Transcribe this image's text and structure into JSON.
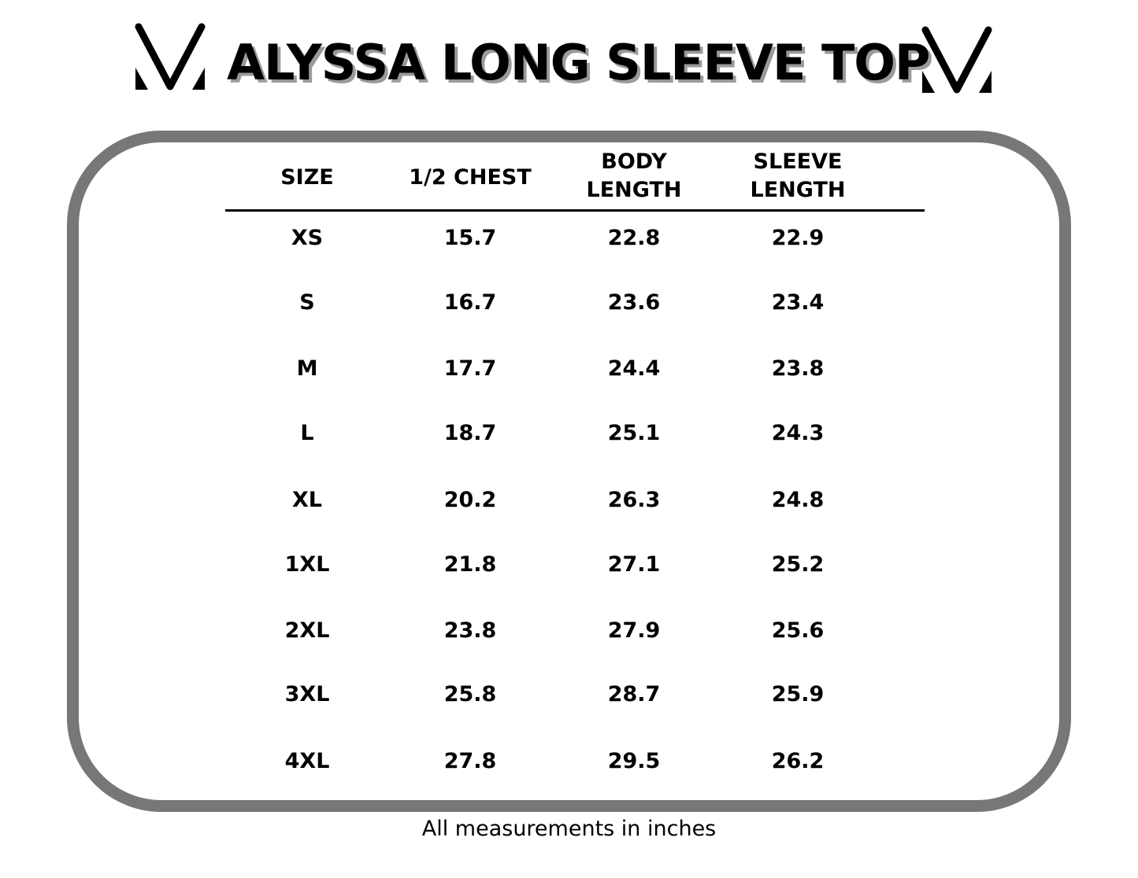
{
  "title": "ALYSSA LONG SLEEVE TOP",
  "logo_icon": "v-logo-icon",
  "headers": [
    "SIZE",
    "1/2 CHEST",
    "BODY\nLENGTH",
    "SLEEVE\nLENGTH"
  ],
  "rows": [
    [
      "XS",
      "15.7",
      "22.8",
      "22.9"
    ],
    [
      "S",
      "16.7",
      "23.6",
      "23.4"
    ],
    [
      "M",
      "17.7",
      "24.4",
      "23.8"
    ],
    [
      "L",
      "18.7",
      "25.1",
      "24.3"
    ],
    [
      "XL",
      "20.2",
      "26.3",
      "24.8"
    ],
    [
      "1XL",
      "21.8",
      "27.1",
      "25.2"
    ],
    [
      "2XL",
      "23.8",
      "27.9",
      "25.6"
    ],
    [
      "3XL",
      "25.8",
      "28.7",
      "25.9"
    ],
    [
      "4XL",
      "27.8",
      "29.5",
      "26.2"
    ]
  ],
  "footnote": "All measurements in inches",
  "colors": {
    "frame": "#777777",
    "text": "#000000",
    "title_shadow": "#9a9a9a"
  }
}
